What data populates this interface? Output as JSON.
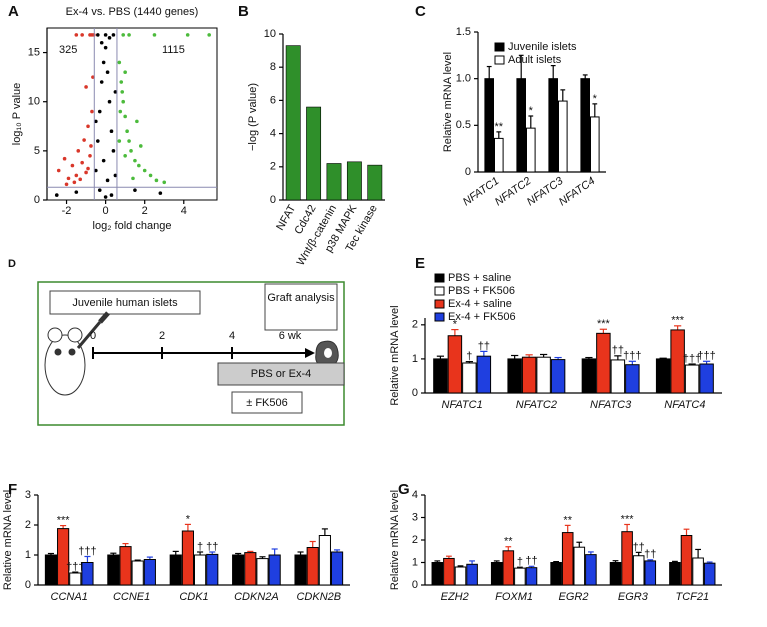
{
  "chart_data": [
    {
      "type": "scatter",
      "label": "A",
      "title": "Ex-4 vs. PBS (1440 genes)",
      "x_label": "log₂ fold change",
      "y_label": "log₁₀ P value",
      "xlim": [
        -3,
        5.7
      ],
      "xticks": [
        -2,
        0,
        2,
        4
      ],
      "ylim": [
        0,
        17.5
      ],
      "yticks": [
        0,
        5,
        10,
        15
      ],
      "annotations": [
        "325",
        "1115"
      ],
      "hlines": [
        1.3
      ],
      "vlines": [
        -0.58,
        0.58
      ],
      "series": [
        {
          "color": "#000000",
          "x": [
            -0.5,
            -0.4,
            -0.3,
            -0.2,
            -0.1,
            0,
            0.1,
            0.2,
            0.3,
            0.4,
            0.5,
            -0.3,
            0,
            0.3,
            -0.5,
            0.5,
            -0.2,
            0.2,
            -1.5,
            1.5,
            -2.5,
            2.8,
            -0.4,
            0.4,
            0,
            -0.1,
            0.1
          ],
          "values": [
            3,
            6,
            9,
            12,
            14,
            15.5,
            13,
            10,
            7,
            5,
            2.5,
            1,
            0.3,
            0.5,
            8,
            11,
            16,
            16.5,
            0.8,
            1.0,
            0.5,
            0.7,
            16.8,
            16.8,
            16.8,
            4,
            2
          ]
        },
        {
          "color": "#d9372a",
          "x": [
            -2.4,
            -2.1,
            -1.9,
            -1.7,
            -1.5,
            -1.4,
            -1.2,
            -1.1,
            -1.0,
            -0.9,
            -0.8,
            -0.7,
            -1.6,
            -1.3,
            -0.9,
            -0.75,
            -2.0,
            -1.2,
            -0.8,
            -0.7,
            -1.5,
            -0.6,
            -1.0,
            -0.65
          ],
          "values": [
            3.0,
            4.2,
            2.2,
            3.5,
            2.5,
            5.0,
            3.8,
            6.1,
            2.8,
            7.5,
            4.5,
            9.0,
            1.8,
            2.1,
            3.2,
            5.5,
            1.6,
            16.8,
            16.8,
            16.8,
            16.8,
            16.8,
            11.5,
            12.5
          ]
        },
        {
          "color": "#4cbb3c",
          "x": [
            0.7,
            0.8,
            0.9,
            1.0,
            1.1,
            1.2,
            1.3,
            1.5,
            1.7,
            2.0,
            2.3,
            2.6,
            3.0,
            0.75,
            0.85,
            1.0,
            1.4,
            1.8,
            0.9,
            1.2,
            2.5,
            4.2,
            5.3,
            0.7,
            1.0,
            1.6
          ],
          "values": [
            14,
            12,
            10,
            8.5,
            7,
            6,
            5,
            4,
            3.5,
            3,
            2.5,
            2,
            1.8,
            9,
            11,
            4.5,
            2.2,
            5.5,
            16.8,
            16.8,
            16.8,
            16.8,
            16.8,
            6,
            13,
            8
          ]
        }
      ]
    },
    {
      "type": "bar",
      "label": "B",
      "y_label": "−log (P value)",
      "color": "#2f8f2a",
      "categories": [
        "NFAT",
        "Cdc42",
        "Wnt/β-catenin",
        "p38 MAPK",
        "Tec kinase"
      ],
      "values": [
        9.3,
        5.6,
        2.2,
        2.3,
        2.1
      ],
      "ylim": [
        0,
        10
      ],
      "yticks": [
        0,
        2,
        4,
        6,
        8,
        10
      ]
    },
    {
      "type": "grouped_bar",
      "label": "C",
      "y_label": "Relative mRNA level",
      "categories": [
        "NFATC1",
        "NFATC2",
        "NFATC3",
        "NFATC4"
      ],
      "ylim": [
        0,
        1.5
      ],
      "yticks": [
        0,
        0.5,
        {
          "value": 1,
          "label": "1.0"
        },
        1.5
      ],
      "series": [
        {
          "name": "Juvenile islets",
          "color": "#000000",
          "values": [
            1,
            1,
            1,
            1
          ],
          "errors": [
            0.13,
            0.25,
            0.14,
            0.04
          ],
          "significance": [
            null,
            null,
            null,
            null
          ]
        },
        {
          "name": "Adult islets",
          "color": "#ffffff",
          "values": [
            0.36,
            0.47,
            0.76,
            0.59
          ],
          "errors": [
            0.07,
            0.13,
            0.12,
            0.14
          ],
          "significance": [
            "**",
            "*",
            null,
            "*"
          ]
        }
      ]
    },
    {
      "type": "grouped_bar",
      "label": "E",
      "y_label": "Relative mRNA level",
      "categories": [
        "NFATC1",
        "NFATC2",
        "NFATC3",
        "NFATC4"
      ],
      "ylim": [
        0,
        2.2
      ],
      "yticks": [
        0,
        1,
        2
      ],
      "series": [
        {
          "name": "PBS + saline",
          "color": "#000000",
          "values": [
            1,
            1,
            1,
            1
          ],
          "errors": [
            0.08,
            0.1,
            0.04,
            0.02
          ],
          "significance": [
            null,
            null,
            null,
            null
          ]
        },
        {
          "name": "PBS + FK506",
          "color": "#ffffff",
          "values": [
            0.88,
            1.05,
            0.97,
            0.82
          ],
          "errors": [
            0.04,
            0.08,
            0.12,
            0.03
          ],
          "significance": [
            "†",
            null,
            "††",
            "†††"
          ]
        },
        {
          "name": "Ex-4 + saline",
          "color": "#e8341c",
          "values": [
            1.68,
            1.05,
            1.75,
            1.85
          ],
          "errors": [
            0.18,
            0.07,
            0.12,
            0.12
          ],
          "significance": [
            "*",
            null,
            "***",
            "***"
          ]
        },
        {
          "name": "Ex-4 + FK506",
          "color": "#1f3fe0",
          "values": [
            1.08,
            0.98,
            0.83,
            0.85
          ],
          "errors": [
            0.14,
            0.06,
            0.1,
            0.08
          ],
          "significance": [
            "††",
            null,
            "†††",
            "†††"
          ]
        }
      ]
    },
    {
      "type": "grouped_bar",
      "label": "F",
      "y_label": "Relative mRNA level",
      "categories": [
        "CCNA1",
        "CCNE1",
        "CDK1",
        "CDKN2A",
        "CDKN2B"
      ],
      "ylim": [
        0,
        3
      ],
      "yticks": [
        0,
        1,
        2,
        3
      ],
      "series": [
        {
          "color": "#000000",
          "values": [
            1,
            1,
            1,
            1,
            1
          ],
          "errors": [
            0.05,
            0.06,
            0.12,
            0.05,
            0.1
          ],
          "significance": [
            null,
            null,
            null,
            null,
            null
          ]
        },
        {
          "color": "#ffffff",
          "values": [
            0.4,
            0.8,
            1.0,
            0.88,
            1.65
          ],
          "errors": [
            0.03,
            0.03,
            0.1,
            0.06,
            0.22
          ],
          "significance": [
            "†††",
            null,
            "†",
            null,
            null
          ]
        },
        {
          "color": "#e8341c",
          "values": [
            1.88,
            1.28,
            1.8,
            1.08,
            1.25
          ],
          "errors": [
            0.1,
            0.1,
            0.22,
            0.04,
            0.2
          ],
          "significance": [
            "***",
            null,
            "*",
            null,
            null
          ]
        },
        {
          "color": "#1f3fe0",
          "values": [
            0.75,
            0.85,
            1.02,
            1.0,
            1.1
          ],
          "errors": [
            0.2,
            0.08,
            0.08,
            0.2,
            0.07
          ],
          "significance": [
            "†††",
            null,
            "††",
            null,
            null
          ]
        }
      ]
    },
    {
      "type": "grouped_bar",
      "label": "G",
      "y_label": "Relative mRNA level",
      "categories": [
        "EZH2",
        "FOXM1",
        "EGR2",
        "EGR3",
        "TCF21"
      ],
      "ylim": [
        0,
        4
      ],
      "yticks": [
        0,
        1,
        2,
        3,
        4
      ],
      "series": [
        {
          "color": "#000000",
          "values": [
            1,
            1,
            1,
            1,
            1
          ],
          "errors": [
            0.07,
            0.07,
            0.04,
            0.08,
            0.05
          ],
          "significance": [
            null,
            null,
            null,
            null,
            null
          ]
        },
        {
          "color": "#ffffff",
          "values": [
            0.8,
            0.75,
            1.68,
            1.3,
            1.2
          ],
          "errors": [
            0.05,
            0.04,
            0.22,
            0.15,
            0.38
          ],
          "significance": [
            null,
            "†",
            null,
            "††",
            null
          ]
        },
        {
          "color": "#e8341c",
          "values": [
            1.18,
            1.52,
            2.33,
            2.37,
            2.2
          ],
          "errors": [
            0.1,
            0.18,
            0.32,
            0.32,
            0.28
          ],
          "significance": [
            null,
            "**",
            "**",
            "***",
            null
          ]
        },
        {
          "color": "#1f3fe0",
          "values": [
            0.92,
            0.77,
            1.35,
            1.07,
            0.97
          ],
          "errors": [
            0.15,
            0.06,
            0.12,
            0.05,
            0.05
          ],
          "significance": [
            null,
            "††",
            null,
            "††",
            null
          ]
        }
      ]
    }
  ],
  "diagram": {
    "label": "D",
    "cohort": "Juvenile human islets",
    "endpoint": "Graft analysis",
    "timeline": [
      "0",
      "2",
      "4",
      "6 wk"
    ],
    "treatment": "PBS or Ex-4",
    "cotreatment": "± FK506"
  }
}
